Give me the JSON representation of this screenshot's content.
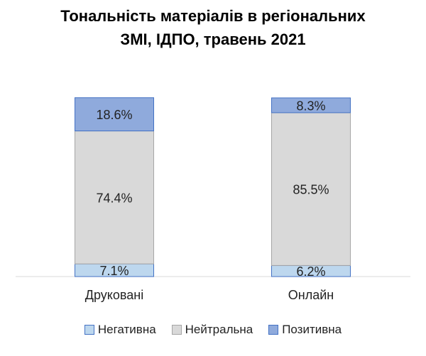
{
  "chart_data": {
    "type": "bar",
    "stacked": true,
    "title_line1": "Тональність матеріалів в регіональних",
    "title_line2": "ЗМІ, ІДПО, травень 2021",
    "categories": [
      "Друковані",
      "Онлайн"
    ],
    "series": [
      {
        "name": "Негативна",
        "values": [
          7.1,
          6.2
        ],
        "labels": [
          "7.1%",
          "6.2%"
        ],
        "color": "#bdd7ee",
        "border": "#4472c4"
      },
      {
        "name": "Нейтральна",
        "values": [
          74.4,
          85.5
        ],
        "labels": [
          "74.4%",
          "85.5%"
        ],
        "color": "#d9d9d9",
        "border": "#a6a6a6"
      },
      {
        "name": "Позитивна",
        "values": [
          18.6,
          8.3
        ],
        "labels": [
          "18.6%",
          "8.3%"
        ],
        "color": "#8faadc",
        "border": "#4472c4"
      }
    ],
    "ylim": [
      0,
      100
    ],
    "grid": false,
    "legend_position": "bottom"
  }
}
